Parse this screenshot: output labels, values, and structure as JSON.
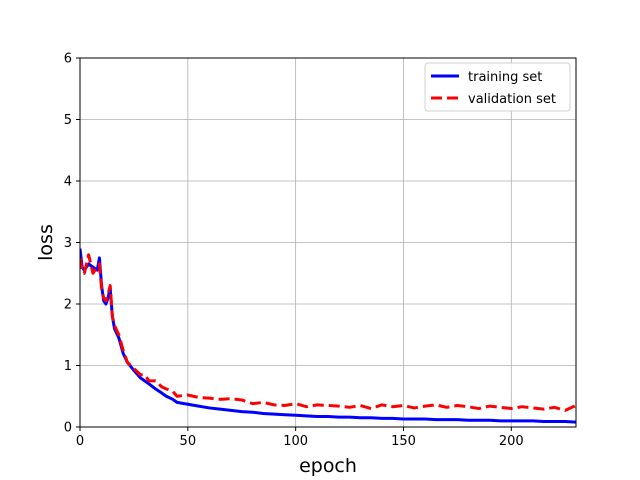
{
  "chart_data": {
    "type": "line",
    "title": "",
    "xlabel": "epoch",
    "ylabel": "loss",
    "xlim": [
      0,
      230
    ],
    "ylim": [
      0,
      6
    ],
    "xticks": [
      0,
      50,
      100,
      150,
      200
    ],
    "yticks": [
      0,
      1,
      2,
      3,
      4,
      5,
      6
    ],
    "grid": true,
    "legend_position": "top-right",
    "series": [
      {
        "name": "training set",
        "color": "#0000ff",
        "style": "solid",
        "x": [
          0,
          1,
          2,
          4,
          6,
          8,
          9,
          10,
          11,
          12,
          13,
          14,
          15,
          16,
          18,
          20,
          22,
          25,
          28,
          30,
          32,
          35,
          38,
          40,
          43,
          45,
          50,
          55,
          60,
          65,
          70,
          75,
          80,
          85,
          90,
          95,
          100,
          105,
          110,
          115,
          120,
          125,
          130,
          135,
          140,
          145,
          150,
          155,
          160,
          165,
          170,
          175,
          180,
          185,
          190,
          195,
          200,
          205,
          210,
          215,
          220,
          225,
          230
        ],
        "y": [
          2.9,
          2.6,
          2.55,
          2.65,
          2.6,
          2.55,
          2.75,
          2.3,
          2.05,
          2.0,
          2.1,
          2.25,
          1.8,
          1.6,
          1.45,
          1.2,
          1.05,
          0.92,
          0.8,
          0.75,
          0.7,
          0.62,
          0.55,
          0.5,
          0.45,
          0.4,
          0.37,
          0.34,
          0.31,
          0.29,
          0.27,
          0.25,
          0.24,
          0.22,
          0.21,
          0.2,
          0.19,
          0.18,
          0.17,
          0.17,
          0.16,
          0.16,
          0.15,
          0.15,
          0.14,
          0.14,
          0.13,
          0.13,
          0.13,
          0.12,
          0.12,
          0.12,
          0.11,
          0.11,
          0.11,
          0.1,
          0.1,
          0.1,
          0.1,
          0.09,
          0.09,
          0.09,
          0.08
        ]
      },
      {
        "name": "validation set",
        "color": "#ff0000",
        "style": "dashed",
        "x": [
          0,
          1,
          2,
          4,
          6,
          8,
          9,
          10,
          11,
          12,
          13,
          14,
          15,
          16,
          18,
          20,
          22,
          25,
          28,
          30,
          32,
          35,
          38,
          40,
          43,
          45,
          50,
          55,
          60,
          65,
          70,
          75,
          80,
          85,
          90,
          95,
          100,
          105,
          110,
          115,
          120,
          125,
          130,
          135,
          140,
          145,
          150,
          155,
          160,
          165,
          170,
          175,
          180,
          185,
          190,
          195,
          200,
          205,
          210,
          215,
          220,
          225,
          230
        ],
        "y": [
          2.75,
          2.55,
          2.5,
          2.8,
          2.5,
          2.6,
          2.65,
          2.25,
          2.1,
          2.05,
          2.15,
          2.3,
          1.8,
          1.65,
          1.5,
          1.25,
          1.05,
          0.95,
          0.85,
          0.85,
          0.75,
          0.75,
          0.65,
          0.62,
          0.58,
          0.5,
          0.52,
          0.48,
          0.47,
          0.45,
          0.46,
          0.44,
          0.38,
          0.4,
          0.36,
          0.35,
          0.38,
          0.33,
          0.36,
          0.35,
          0.34,
          0.32,
          0.35,
          0.3,
          0.36,
          0.33,
          0.35,
          0.31,
          0.34,
          0.36,
          0.32,
          0.35,
          0.33,
          0.3,
          0.34,
          0.32,
          0.3,
          0.33,
          0.31,
          0.29,
          0.32,
          0.27,
          0.35
        ]
      }
    ]
  }
}
